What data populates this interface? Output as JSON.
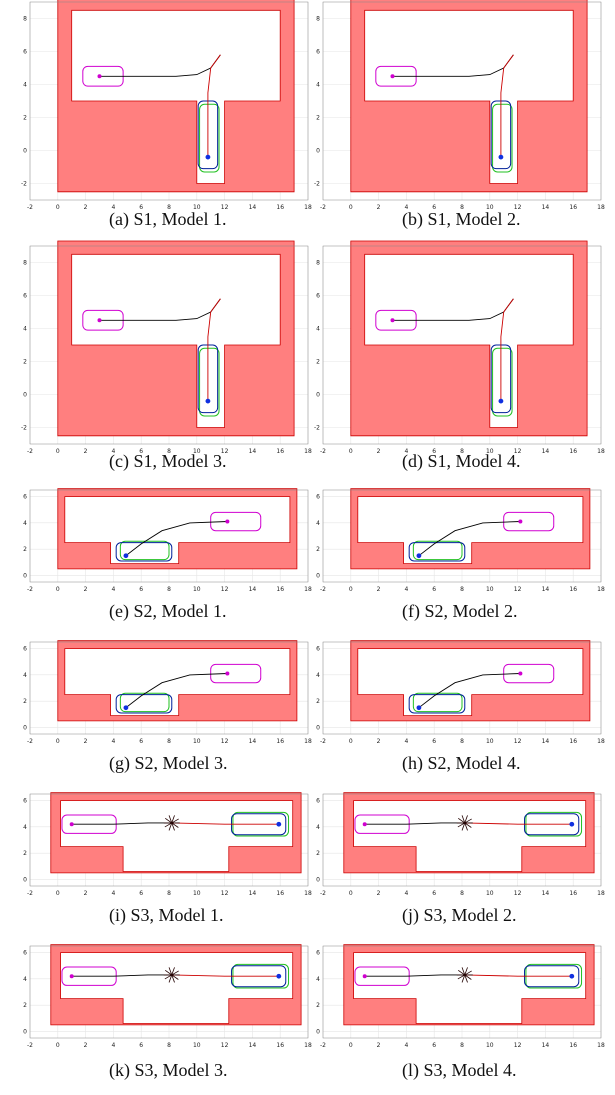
{
  "figure": {
    "colors": {
      "obstacle": "#ff7f7f",
      "obstacle_edge": "#cc0000",
      "grid": "#e6e6e6",
      "start_footprint": "#d000d0",
      "goal_footprint_green": "#20c020",
      "goal_footprint_blue": "#00209a",
      "path_black": "#000000",
      "path_red": "#cc0000",
      "point": "#1030e0"
    },
    "panels": [
      {
        "label": "a",
        "caption": "(a) S1, Model 1.",
        "scenario": "S1",
        "ylim": [
          -3,
          9
        ],
        "yticks": [
          -2,
          0,
          2,
          4,
          6,
          8
        ]
      },
      {
        "label": "b",
        "caption": "(b) S1, Model 2.",
        "scenario": "S1",
        "ylim": [
          -3,
          9
        ],
        "yticks": [
          -2,
          0,
          2,
          4,
          6,
          8
        ]
      },
      {
        "label": "c",
        "caption": "(c) S1, Model 3.",
        "scenario": "S1",
        "ylim": [
          -3,
          9
        ],
        "yticks": [
          -2,
          0,
          2,
          4,
          6,
          8
        ]
      },
      {
        "label": "d",
        "caption": "(d) S1, Model 4.",
        "scenario": "S1",
        "ylim": [
          -3,
          9
        ],
        "yticks": [
          -2,
          0,
          2,
          4,
          6,
          8
        ]
      },
      {
        "label": "e",
        "caption": "(e) S2, Model 1.",
        "scenario": "S2",
        "ylim": [
          -0.5,
          6.5
        ],
        "yticks": [
          0,
          2,
          4,
          6
        ]
      },
      {
        "label": "f",
        "caption": "(f) S2, Model 2.",
        "scenario": "S2",
        "ylim": [
          -0.5,
          6.5
        ],
        "yticks": [
          0,
          2,
          4,
          6
        ]
      },
      {
        "label": "g",
        "caption": "(g) S2, Model 3.",
        "scenario": "S2",
        "ylim": [
          -0.5,
          6.5
        ],
        "yticks": [
          0,
          2,
          4,
          6
        ]
      },
      {
        "label": "h",
        "caption": "(h) S2, Model 4.",
        "scenario": "S2",
        "ylim": [
          -0.5,
          6.5
        ],
        "yticks": [
          0,
          2,
          4,
          6
        ]
      },
      {
        "label": "i",
        "caption": "(i) S3, Model 1.",
        "scenario": "S3",
        "ylim": [
          -0.5,
          6.5
        ],
        "yticks": [
          0,
          2,
          4,
          6
        ]
      },
      {
        "label": "j",
        "caption": "(j) S3, Model 2.",
        "scenario": "S3",
        "ylim": [
          -0.5,
          6.5
        ],
        "yticks": [
          0,
          2,
          4,
          6
        ]
      },
      {
        "label": "k",
        "caption": "(k) S3, Model 3.",
        "scenario": "S3",
        "ylim": [
          -0.5,
          6.5
        ],
        "yticks": [
          0,
          2,
          4,
          6
        ]
      },
      {
        "label": "l",
        "caption": "(l) S3, Model 4.",
        "scenario": "S3",
        "ylim": [
          -0.5,
          6.5
        ],
        "yticks": [
          0,
          2,
          4,
          6
        ]
      }
    ],
    "xlim": [
      -2,
      18
    ],
    "xticks": [
      -2,
      0,
      2,
      4,
      6,
      8,
      10,
      12,
      14,
      16,
      18
    ]
  },
  "chart_data": [
    {
      "scenario": "S1",
      "type": "scatter",
      "obstacle_outer": [
        [
          0,
          -2.5
        ],
        [
          17,
          -2.5
        ],
        [
          17,
          9.3
        ],
        [
          0,
          9.3
        ]
      ],
      "free_space": [
        [
          1,
          3
        ],
        [
          1,
          8.5
        ],
        [
          16,
          8.5
        ],
        [
          16,
          3
        ],
        [
          12,
          3
        ],
        [
          12,
          -2
        ],
        [
          10,
          -2
        ],
        [
          10,
          3
        ]
      ],
      "start": [
        3,
        4.5
      ],
      "start_box": [
        1.8,
        3.9,
        4.7,
        5.1
      ],
      "goal": [
        10.8,
        -0.4
      ],
      "goal_box_green": [
        10.2,
        -1.3,
        11.6,
        2.8
      ],
      "goal_box_blue": [
        10.1,
        -1.1,
        11.5,
        3.0
      ],
      "path_black": [
        [
          3,
          4.5
        ],
        [
          6,
          4.5
        ],
        [
          8.5,
          4.5
        ],
        [
          10,
          4.6
        ],
        [
          11,
          5
        ],
        [
          11.7,
          5.8
        ]
      ],
      "path_red": [
        [
          11.7,
          5.8
        ],
        [
          11,
          5
        ],
        [
          10.8,
          3.5
        ],
        [
          10.8,
          1
        ],
        [
          10.8,
          -0.4
        ]
      ]
    },
    {
      "scenario": "S2",
      "type": "scatter",
      "obstacle_outer": [
        [
          0,
          0.5
        ],
        [
          17.2,
          0.5
        ],
        [
          17.2,
          6.6
        ],
        [
          0,
          6.6
        ]
      ],
      "free_space": [
        [
          0.5,
          2.5
        ],
        [
          0.5,
          6
        ],
        [
          16.7,
          6
        ],
        [
          16.7,
          2.5
        ],
        [
          8.7,
          2.5
        ],
        [
          8.7,
          0.9
        ],
        [
          3.8,
          0.9
        ],
        [
          3.8,
          2.5
        ]
      ],
      "start": [
        12.2,
        4.1
      ],
      "start_box": [
        11,
        3.4,
        14.6,
        4.8
      ],
      "goal": [
        4.9,
        1.5
      ],
      "goal_box_green": [
        4.5,
        1.2,
        8,
        2.6
      ],
      "goal_box_blue": [
        4.2,
        1.1,
        8.2,
        2.5
      ],
      "path_black": [
        [
          12.2,
          4.1
        ],
        [
          9.5,
          4.0
        ],
        [
          7.5,
          3.4
        ],
        [
          6,
          2.4
        ],
        [
          4.9,
          1.5
        ]
      ],
      "path_red": []
    },
    {
      "scenario": "S3",
      "type": "scatter",
      "obstacle_outer": [
        [
          -0.5,
          0.5
        ],
        [
          17.5,
          0.5
        ],
        [
          17.5,
          6.6
        ],
        [
          -0.5,
          6.6
        ]
      ],
      "free_space": [
        [
          0.2,
          2.5
        ],
        [
          0.2,
          6
        ],
        [
          16.9,
          6
        ],
        [
          16.9,
          2.5
        ],
        [
          12.3,
          2.5
        ],
        [
          12.3,
          0.6
        ],
        [
          4.7,
          0.6
        ],
        [
          4.7,
          2.5
        ]
      ],
      "start": [
        1,
        4.2
      ],
      "start_box": [
        0.3,
        3.5,
        4.2,
        4.9
      ],
      "goal": [
        15.9,
        4.2
      ],
      "goal_box_green": [
        12.6,
        3.3,
        16.6,
        5.1
      ],
      "goal_box_blue": [
        12.5,
        3.4,
        16.4,
        5.0
      ],
      "path_black": [
        [
          1,
          4.2
        ],
        [
          4,
          4.2
        ],
        [
          6.5,
          4.3
        ],
        [
          8.2,
          4.3
        ]
      ],
      "path_red": [
        [
          8.2,
          4.3
        ],
        [
          12,
          4.2
        ],
        [
          15.9,
          4.2
        ]
      ]
    }
  ]
}
